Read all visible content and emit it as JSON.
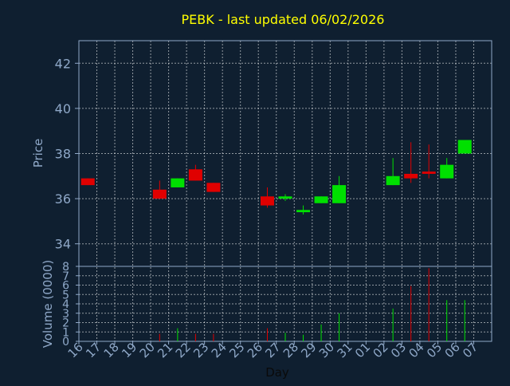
{
  "chart_data": {
    "type": "candlestick",
    "title": "PEBK - last updated 06/02/2026",
    "xlabel": "Day",
    "ylabel_price": "Price",
    "ylabel_volume": "Volume (0000)",
    "price_ylim": [
      33,
      43
    ],
    "price_ticks": [
      "34",
      "36",
      "38",
      "40",
      "42"
    ],
    "volume_ylim": [
      0,
      8
    ],
    "volume_ticks": [
      "0",
      "1",
      "2",
      "3",
      "4",
      "5",
      "6",
      "7",
      "8"
    ],
    "x_labels": [
      "16",
      "17",
      "18",
      "19",
      "20",
      "21",
      "22",
      "23",
      "24",
      "25",
      "26",
      "27",
      "28",
      "29",
      "30",
      "31",
      "01",
      "02",
      "03",
      "04",
      "05",
      "06",
      "07"
    ],
    "grid": true,
    "colors": {
      "background": "#0f1f30",
      "up": "#00e000",
      "down": "#e00000",
      "title": "#ffff00",
      "axis_text": "#8fa8c8",
      "frame": "#8fa8c8",
      "grid": "#ffffff"
    },
    "candles": [
      {
        "day": "16",
        "open": 36.9,
        "close": 36.6,
        "high": 36.9,
        "low": 36.6,
        "volume": 0.0
      },
      {
        "day": "20",
        "open": 36.4,
        "close": 36.0,
        "high": 36.8,
        "low": 36.0,
        "volume": 0.8
      },
      {
        "day": "21",
        "open": 36.5,
        "close": 36.9,
        "high": 36.9,
        "low": 36.5,
        "volume": 1.4
      },
      {
        "day": "22",
        "open": 37.3,
        "close": 36.8,
        "high": 37.5,
        "low": 36.8,
        "volume": 0.8
      },
      {
        "day": "23",
        "open": 36.7,
        "close": 36.3,
        "high": 36.7,
        "low": 36.3,
        "volume": 0.8
      },
      {
        "day": "26",
        "open": 36.1,
        "close": 35.7,
        "high": 36.5,
        "low": 35.6,
        "volume": 1.4
      },
      {
        "day": "27",
        "open": 36.0,
        "close": 36.1,
        "high": 36.2,
        "low": 35.9,
        "volume": 0.9
      },
      {
        "day": "28",
        "open": 35.4,
        "close": 35.5,
        "high": 35.7,
        "low": 35.3,
        "volume": 0.7
      },
      {
        "day": "29",
        "open": 35.8,
        "close": 36.1,
        "high": 36.1,
        "low": 35.8,
        "volume": 1.8
      },
      {
        "day": "30",
        "open": 35.8,
        "close": 36.6,
        "high": 37.0,
        "low": 35.8,
        "volume": 3.0
      },
      {
        "day": "02",
        "open": 36.6,
        "close": 37.0,
        "high": 37.8,
        "low": 36.6,
        "volume": 3.5
      },
      {
        "day": "03",
        "open": 37.1,
        "close": 36.9,
        "high": 38.5,
        "low": 36.7,
        "volume": 5.9
      },
      {
        "day": "04",
        "open": 37.2,
        "close": 37.1,
        "high": 38.4,
        "low": 36.9,
        "volume": 7.8
      },
      {
        "day": "05",
        "open": 36.9,
        "close": 37.5,
        "high": 37.8,
        "low": 36.9,
        "volume": 4.4
      },
      {
        "day": "06",
        "open": 38.0,
        "close": 38.6,
        "high": 38.6,
        "low": 38.0,
        "volume": 4.4
      }
    ]
  }
}
